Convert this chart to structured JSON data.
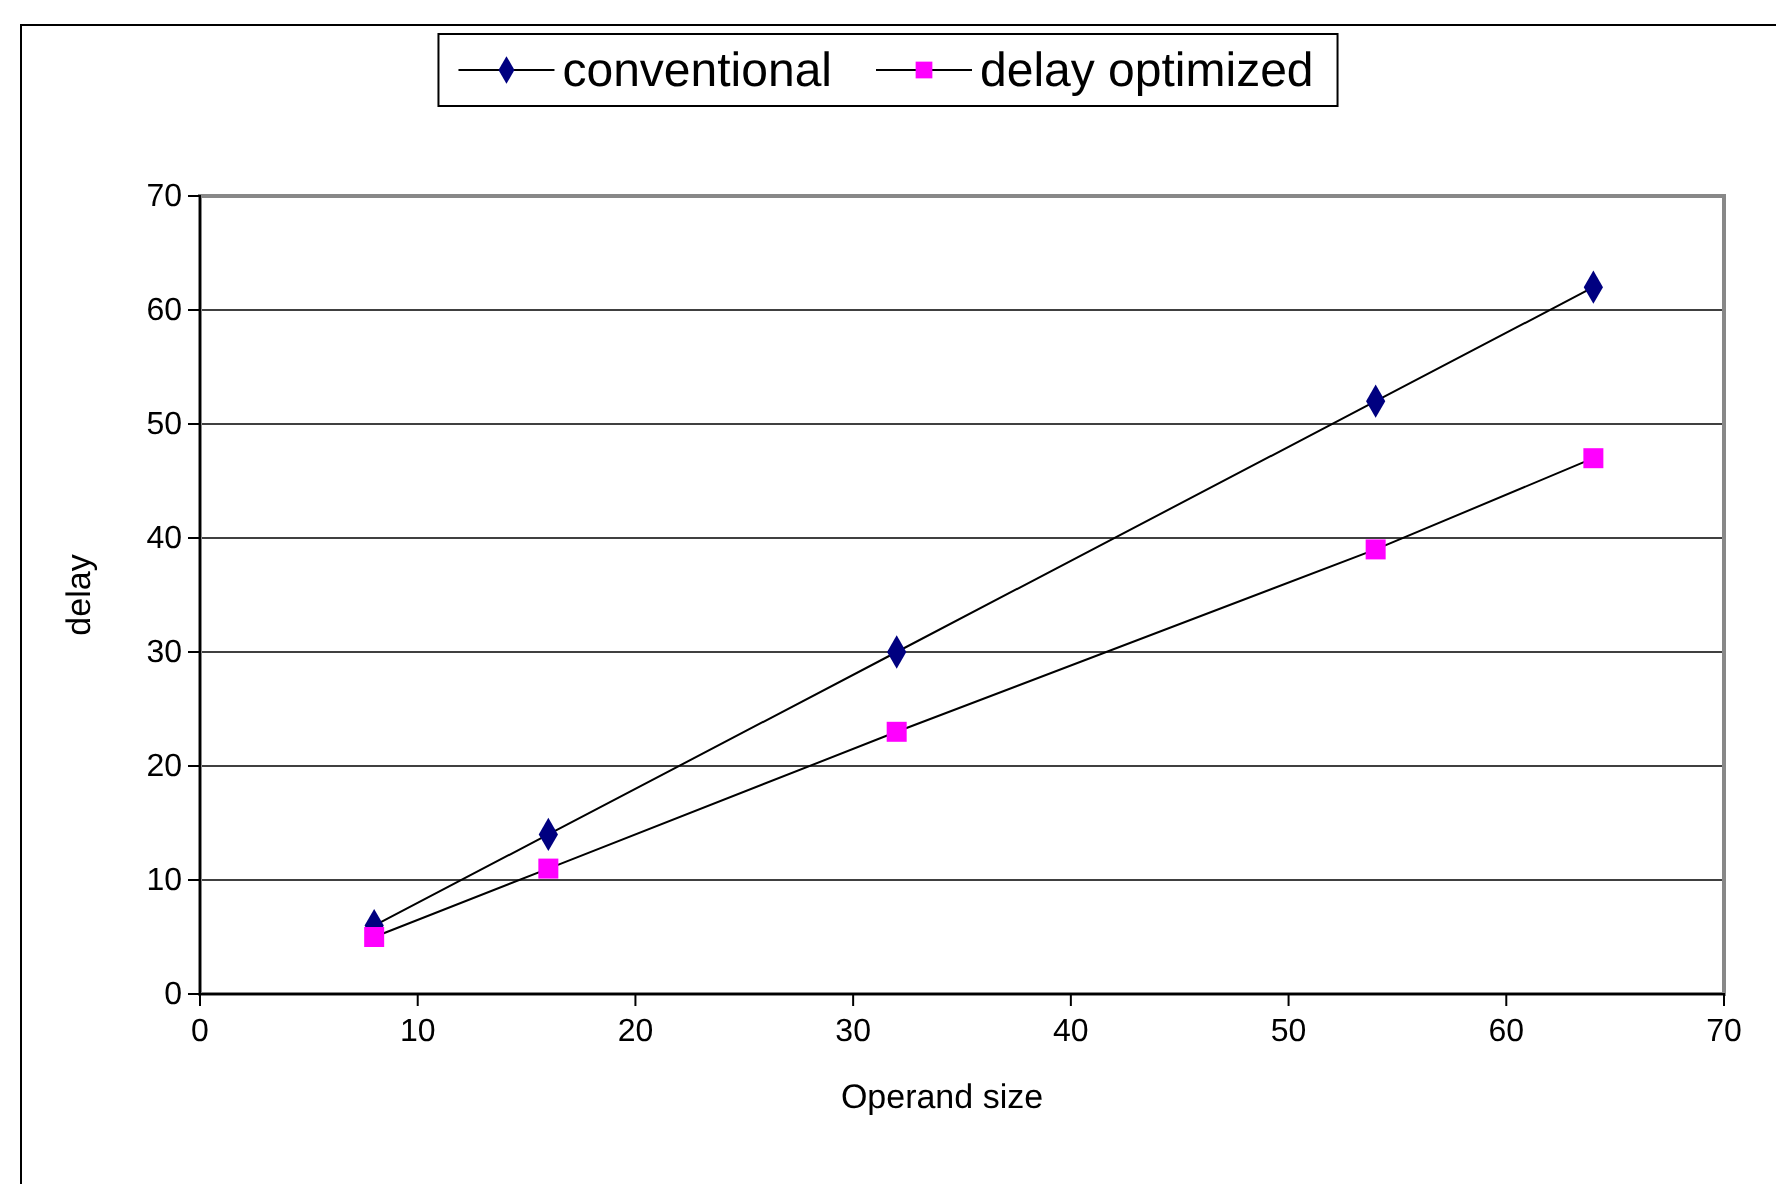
{
  "chart_data": {
    "type": "line",
    "xlabel": "Operand size",
    "ylabel": "delay",
    "xlim": [
      0,
      70
    ],
    "xticks": [
      0,
      10,
      20,
      30,
      40,
      50,
      60,
      70
    ],
    "ylim": [
      0,
      70
    ],
    "yticks": [
      0,
      10,
      20,
      30,
      40,
      50,
      60,
      70
    ],
    "grid": "y",
    "legend": "top",
    "series": [
      {
        "name": "conventional",
        "color": "#000080",
        "marker": "diamond",
        "x": [
          8,
          16,
          32,
          54,
          64
        ],
        "values": [
          6,
          14,
          30,
          52,
          62
        ]
      },
      {
        "name": "delay optimized",
        "color": "#ff00ff",
        "marker": "square",
        "x": [
          8,
          16,
          32,
          54,
          64
        ],
        "values": [
          5,
          11,
          23,
          39,
          47
        ]
      }
    ]
  }
}
